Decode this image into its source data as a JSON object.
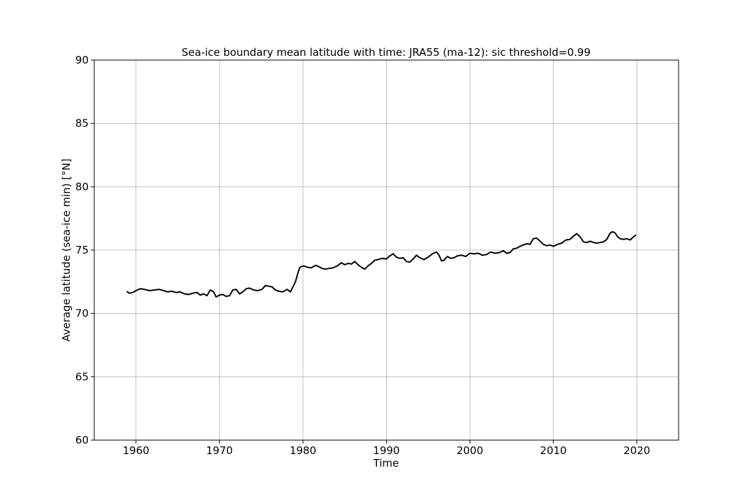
{
  "chart_data": {
    "type": "line",
    "title": "Sea-ice boundary mean latitude with time: JRA55 (ma-12): sic threshold=0.99",
    "xlabel": "Time",
    "ylabel": "Average latitude (sea-ice min) [°N]",
    "xlim": [
      1955,
      2025
    ],
    "ylim": [
      60,
      90
    ],
    "xticks": [
      1960,
      1970,
      1980,
      1990,
      2000,
      2010,
      2020
    ],
    "yticks": [
      60,
      65,
      70,
      75,
      80,
      85,
      90
    ],
    "grid": true,
    "series": [
      {
        "color": "#000000",
        "x": [
          1958.9,
          1959.2,
          1959.6,
          1960.0,
          1960.5,
          1961.0,
          1961.6,
          1962.2,
          1962.8,
          1963.3,
          1963.8,
          1964.3,
          1964.8,
          1965.3,
          1965.8,
          1966.3,
          1966.8,
          1967.3,
          1967.7,
          1968.1,
          1968.5,
          1968.9,
          1969.3,
          1969.6,
          1970.0,
          1970.4,
          1970.8,
          1971.2,
          1971.6,
          1972.0,
          1972.4,
          1972.8,
          1973.2,
          1973.6,
          1974.1,
          1974.6,
          1975.1,
          1975.5,
          1975.9,
          1976.3,
          1976.7,
          1977.1,
          1977.6,
          1978.1,
          1978.5,
          1978.8,
          1979.1,
          1979.4,
          1979.6,
          1979.8,
          1980.1,
          1980.5,
          1981.0,
          1981.5,
          1981.9,
          1982.3,
          1982.7,
          1983.1,
          1983.6,
          1984.1,
          1984.6,
          1985.0,
          1985.4,
          1985.8,
          1986.2,
          1986.6,
          1987.0,
          1987.4,
          1987.8,
          1988.2,
          1988.6,
          1989.0,
          1989.5,
          1990.0,
          1990.4,
          1990.8,
          1991.2,
          1991.6,
          1992.0,
          1992.4,
          1992.8,
          1993.2,
          1993.6,
          1994.0,
          1994.5,
          1995.0,
          1995.5,
          1996.0,
          1996.3,
          1996.6,
          1996.9,
          1997.3,
          1997.7,
          1998.1,
          1998.5,
          1999.0,
          1999.5,
          2000.0,
          2000.5,
          2001.0,
          2001.5,
          2002.0,
          2002.5,
          2003.0,
          2003.5,
          2004.0,
          2004.4,
          2004.8,
          2005.2,
          2005.6,
          2006.0,
          2006.4,
          2006.8,
          2007.2,
          2007.6,
          2008.0,
          2008.4,
          2008.8,
          2009.2,
          2009.6,
          2010.0,
          2010.5,
          2011.0,
          2011.5,
          2012.0,
          2012.4,
          2012.8,
          2013.2,
          2013.6,
          2014.0,
          2014.4,
          2014.8,
          2015.2,
          2015.6,
          2016.0,
          2016.4,
          2016.8,
          2017.1,
          2017.4,
          2017.7,
          2018.0,
          2018.4,
          2018.8,
          2019.2,
          2019.6,
          2019.9
        ],
        "y": [
          71.75,
          71.6,
          71.65,
          71.8,
          71.95,
          71.9,
          71.8,
          71.85,
          71.9,
          71.8,
          71.7,
          71.75,
          71.65,
          71.7,
          71.55,
          71.5,
          71.6,
          71.65,
          71.45,
          71.55,
          71.4,
          71.85,
          71.7,
          71.3,
          71.45,
          71.5,
          71.35,
          71.4,
          71.85,
          71.9,
          71.55,
          71.7,
          71.95,
          72.0,
          71.85,
          71.8,
          71.9,
          72.2,
          72.15,
          72.1,
          71.85,
          71.75,
          71.7,
          71.9,
          71.7,
          72.1,
          72.5,
          73.2,
          73.6,
          73.7,
          73.75,
          73.65,
          73.6,
          73.8,
          73.7,
          73.55,
          73.5,
          73.55,
          73.6,
          73.75,
          74.0,
          73.85,
          73.95,
          73.9,
          74.1,
          73.85,
          73.65,
          73.5,
          73.75,
          73.95,
          74.2,
          74.25,
          74.35,
          74.3,
          74.55,
          74.7,
          74.45,
          74.35,
          74.4,
          74.1,
          74.05,
          74.3,
          74.6,
          74.4,
          74.25,
          74.45,
          74.7,
          74.85,
          74.6,
          74.15,
          74.2,
          74.5,
          74.35,
          74.4,
          74.55,
          74.6,
          74.5,
          74.75,
          74.7,
          74.75,
          74.6,
          74.65,
          74.85,
          74.75,
          74.8,
          74.95,
          74.75,
          74.8,
          75.1,
          75.15,
          75.3,
          75.4,
          75.5,
          75.45,
          75.9,
          75.95,
          75.7,
          75.45,
          75.35,
          75.4,
          75.3,
          75.45,
          75.55,
          75.8,
          75.85,
          76.1,
          76.3,
          76.05,
          75.65,
          75.6,
          75.7,
          75.6,
          75.55,
          75.6,
          75.65,
          75.85,
          76.35,
          76.45,
          76.35,
          76.05,
          75.9,
          75.85,
          75.9,
          75.8,
          76.05,
          76.2
        ]
      }
    ]
  }
}
